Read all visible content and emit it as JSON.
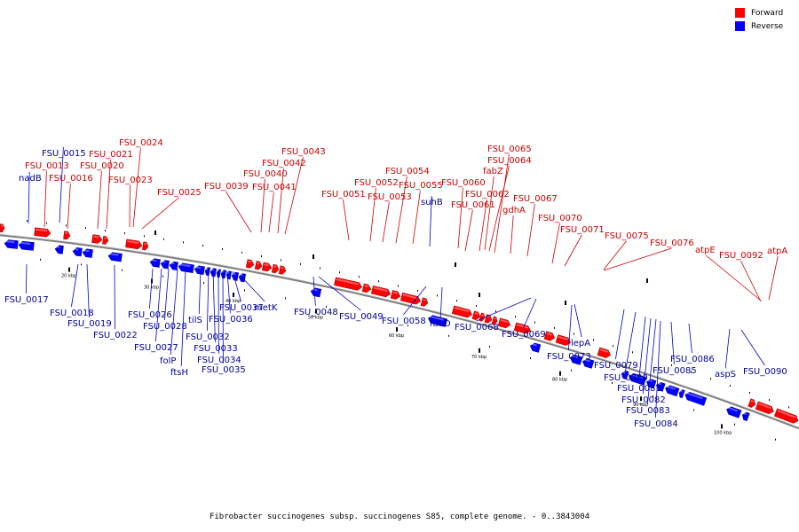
{
  "caption": "Fibrobacter succinogenes subsp. succinogenes S85, complete genome. - 0..3843004",
  "legend": [
    {
      "label": "Forward",
      "color": "#ff0000"
    },
    {
      "label": "Reverse",
      "color": "#0000ff"
    }
  ],
  "colors": {
    "forward": "#ff0000",
    "reverse": "#0000ff",
    "forward_label": "#cc0000",
    "reverse_label": "#000099",
    "backbone": "#808080"
  },
  "ticks": [
    "20 kbp",
    "30 kbp",
    "40 kbp",
    "50 kbp",
    "60 kbp",
    "70 kbp",
    "80 kbp",
    "90 kbp",
    "100 kbp"
  ],
  "forward_labels": [
    "FSU_0013",
    "FSU_0016",
    "FSU_0020",
    "FSU_0021",
    "FSU_0023",
    "FSU_0024",
    "FSU_0025",
    "FSU_0039",
    "FSU_0040",
    "FSU_0041",
    "FSU_0042",
    "FSU_0043",
    "FSU_0051",
    "FSU_0052",
    "FSU_0053",
    "FSU_0054",
    "FSU_0055",
    "FSU_0060",
    "FSU_0061",
    "FSU_0062",
    "fabZ",
    "FSU_0064",
    "FSU_0065",
    "gdhA",
    "FSU_0067",
    "FSU_0070",
    "FSU_0071",
    "FSU_0075",
    "FSU_0076",
    "atpE",
    "FSU_0092",
    "atpA"
  ],
  "reverse_labels": [
    "nadB",
    "FSU_0015",
    "FSU_0017",
    "FSU_0018",
    "FSU_0019",
    "FSU_0022",
    "FSU_0026",
    "FSU_0027",
    "FSU_0028",
    "folP",
    "ftsH",
    "tilS",
    "FSU_0032",
    "FSU_0033",
    "FSU_0034",
    "FSU_0035",
    "FSU_0036",
    "FSU_0037",
    "metK",
    "FSU_0048",
    "FSU_0049",
    "suhB",
    "FSU_0058",
    "fabD",
    "FSU_0068",
    "FSU_0069",
    "lepA",
    "FSU_0073",
    "FSU_0079",
    "FSU_0080",
    "FSU_0081",
    "FSU_0082",
    "FSU_0083",
    "FSU_0084",
    "FSU_0085",
    "FSU_0086",
    "aspS",
    "FSU_0090"
  ]
}
